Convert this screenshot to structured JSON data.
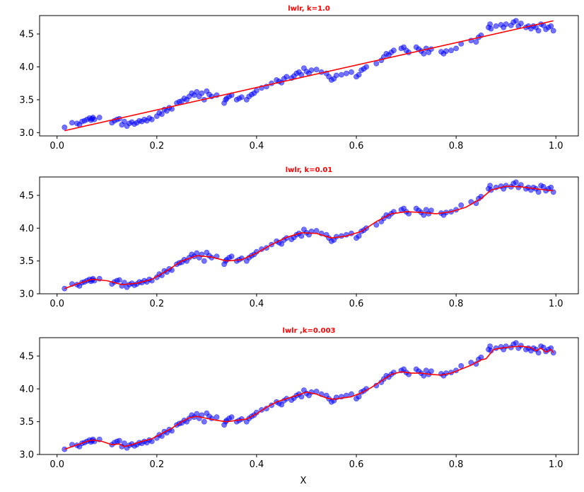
{
  "figure": {
    "xlabel": "X"
  },
  "chart_data": [
    {
      "type": "scatter",
      "title": "lwlr, k=1.0",
      "xlabel": "",
      "ylabel": "",
      "xlim": [
        -0.035,
        1.045
      ],
      "ylim": [
        2.95,
        4.78
      ],
      "xticks": [
        "0.0",
        "0.2",
        "0.4",
        "0.6",
        "0.8",
        "1.0"
      ],
      "yticks": [
        "3.0",
        "3.5",
        "4.0",
        "4.5"
      ],
      "grid": false,
      "colors": {
        "points": "#0000ff",
        "fit": "#ff0000",
        "title": "#ff0000"
      },
      "fit_line": {
        "x": [
          0.015,
          0.995
        ],
        "y": [
          3.03,
          4.7
        ]
      }
    },
    {
      "type": "scatter",
      "title": "lwlr, k=0.01",
      "xlabel": "",
      "ylabel": "",
      "xlim": [
        -0.035,
        1.045
      ],
      "ylim": [
        3.0,
        4.78
      ],
      "xticks": [
        "0.0",
        "0.2",
        "0.4",
        "0.6",
        "0.8",
        "1.0"
      ],
      "yticks": [
        "3.0",
        "3.5",
        "4.0",
        "4.5"
      ],
      "grid": false,
      "colors": {
        "points": "#0000ff",
        "fit": "#ff0000",
        "title": "#ff0000"
      },
      "fit_line": {
        "x": [
          0.015,
          0.04,
          0.07,
          0.1,
          0.13,
          0.16,
          0.19,
          0.22,
          0.25,
          0.28,
          0.31,
          0.34,
          0.37,
          0.4,
          0.43,
          0.46,
          0.49,
          0.52,
          0.55,
          0.58,
          0.61,
          0.64,
          0.67,
          0.7,
          0.73,
          0.76,
          0.79,
          0.82,
          0.85,
          0.87,
          0.9,
          0.93,
          0.96,
          0.995
        ],
        "y": [
          3.08,
          3.15,
          3.22,
          3.2,
          3.14,
          3.16,
          3.22,
          3.35,
          3.5,
          3.58,
          3.56,
          3.5,
          3.52,
          3.62,
          3.75,
          3.86,
          3.93,
          3.92,
          3.85,
          3.88,
          3.95,
          4.1,
          4.22,
          4.25,
          4.24,
          4.22,
          4.25,
          4.32,
          4.45,
          4.58,
          4.64,
          4.63,
          4.6,
          4.57
        ]
      }
    },
    {
      "type": "scatter",
      "title": "lwlr ,k=0.003",
      "xlabel": "X",
      "ylabel": "",
      "xlim": [
        -0.035,
        1.045
      ],
      "ylim": [
        3.0,
        4.78
      ],
      "xticks": [
        "0.0",
        "0.2",
        "0.4",
        "0.6",
        "0.8",
        "1.0"
      ],
      "yticks": [
        "3.0",
        "3.5",
        "4.0",
        "4.5"
      ],
      "grid": false,
      "colors": {
        "points": "#0000ff",
        "fit": "#ff0000",
        "title": "#ff0000"
      },
      "fit_line": {
        "x": [
          0.015,
          0.03,
          0.045,
          0.06,
          0.07,
          0.09,
          0.11,
          0.125,
          0.135,
          0.15,
          0.17,
          0.19,
          0.21,
          0.23,
          0.25,
          0.265,
          0.28,
          0.3,
          0.32,
          0.34,
          0.36,
          0.38,
          0.4,
          0.42,
          0.44,
          0.46,
          0.48,
          0.5,
          0.52,
          0.54,
          0.555,
          0.57,
          0.59,
          0.61,
          0.63,
          0.65,
          0.67,
          0.69,
          0.71,
          0.73,
          0.75,
          0.77,
          0.79,
          0.81,
          0.83,
          0.85,
          0.86,
          0.875,
          0.89,
          0.91,
          0.93,
          0.95,
          0.96,
          0.97,
          0.98,
          0.99,
          0.995
        ],
        "y": [
          3.08,
          3.12,
          3.16,
          3.2,
          3.22,
          3.2,
          3.15,
          3.16,
          3.12,
          3.15,
          3.2,
          3.24,
          3.32,
          3.4,
          3.5,
          3.56,
          3.58,
          3.55,
          3.52,
          3.5,
          3.52,
          3.54,
          3.62,
          3.72,
          3.8,
          3.85,
          3.9,
          3.95,
          3.92,
          3.86,
          3.84,
          3.86,
          3.88,
          3.94,
          4.02,
          4.12,
          4.22,
          4.26,
          4.24,
          4.24,
          4.22,
          4.21,
          4.24,
          4.3,
          4.36,
          4.44,
          4.46,
          4.6,
          4.62,
          4.64,
          4.65,
          4.63,
          4.58,
          4.62,
          4.56,
          4.6,
          4.55
        ]
      }
    }
  ],
  "scatter_points": {
    "x": [
      0.015,
      0.03,
      0.04,
      0.045,
      0.05,
      0.055,
      0.06,
      0.065,
      0.068,
      0.07,
      0.072,
      0.075,
      0.085,
      0.11,
      0.115,
      0.12,
      0.125,
      0.13,
      0.135,
      0.14,
      0.145,
      0.15,
      0.155,
      0.16,
      0.165,
      0.17,
      0.175,
      0.18,
      0.185,
      0.19,
      0.2,
      0.205,
      0.21,
      0.215,
      0.22,
      0.225,
      0.23,
      0.24,
      0.245,
      0.25,
      0.255,
      0.26,
      0.265,
      0.27,
      0.275,
      0.28,
      0.285,
      0.29,
      0.295,
      0.3,
      0.305,
      0.31,
      0.32,
      0.335,
      0.338,
      0.34,
      0.345,
      0.35,
      0.36,
      0.365,
      0.37,
      0.38,
      0.385,
      0.39,
      0.395,
      0.4,
      0.41,
      0.42,
      0.43,
      0.44,
      0.445,
      0.45,
      0.455,
      0.46,
      0.47,
      0.475,
      0.48,
      0.485,
      0.49,
      0.495,
      0.5,
      0.505,
      0.51,
      0.52,
      0.53,
      0.54,
      0.545,
      0.55,
      0.555,
      0.56,
      0.57,
      0.58,
      0.59,
      0.6,
      0.605,
      0.61,
      0.615,
      0.62,
      0.64,
      0.65,
      0.655,
      0.66,
      0.665,
      0.67,
      0.675,
      0.69,
      0.695,
      0.7,
      0.705,
      0.72,
      0.725,
      0.73,
      0.735,
      0.74,
      0.745,
      0.75,
      0.77,
      0.775,
      0.78,
      0.79,
      0.8,
      0.81,
      0.83,
      0.84,
      0.845,
      0.85,
      0.865,
      0.868,
      0.87,
      0.88,
      0.89,
      0.895,
      0.9,
      0.91,
      0.915,
      0.92,
      0.925,
      0.93,
      0.94,
      0.945,
      0.95,
      0.955,
      0.96,
      0.965,
      0.97,
      0.975,
      0.98,
      0.985,
      0.99,
      0.995
    ],
    "y": [
      3.08,
      3.15,
      3.14,
      3.12,
      3.17,
      3.18,
      3.2,
      3.22,
      3.19,
      3.21,
      3.23,
      3.2,
      3.23,
      3.15,
      3.18,
      3.2,
      3.21,
      3.12,
      3.17,
      3.1,
      3.14,
      3.16,
      3.13,
      3.15,
      3.18,
      3.17,
      3.2,
      3.18,
      3.22,
      3.2,
      3.25,
      3.3,
      3.28,
      3.35,
      3.33,
      3.38,
      3.36,
      3.45,
      3.47,
      3.48,
      3.52,
      3.5,
      3.55,
      3.6,
      3.57,
      3.62,
      3.55,
      3.6,
      3.5,
      3.63,
      3.58,
      3.55,
      3.57,
      3.45,
      3.5,
      3.52,
      3.55,
      3.57,
      3.5,
      3.52,
      3.54,
      3.5,
      3.55,
      3.58,
      3.6,
      3.64,
      3.68,
      3.7,
      3.75,
      3.8,
      3.78,
      3.76,
      3.82,
      3.85,
      3.83,
      3.86,
      3.9,
      3.92,
      3.88,
      3.98,
      3.93,
      3.9,
      3.95,
      3.96,
      3.92,
      3.9,
      3.85,
      3.8,
      3.82,
      3.87,
      3.88,
      3.9,
      3.92,
      3.85,
      3.88,
      3.95,
      3.97,
      4.0,
      4.05,
      4.1,
      4.15,
      4.2,
      4.18,
      4.22,
      4.25,
      4.28,
      4.3,
      4.25,
      4.22,
      4.3,
      4.27,
      4.24,
      4.2,
      4.28,
      4.22,
      4.27,
      4.23,
      4.2,
      4.24,
      4.25,
      4.28,
      4.35,
      4.4,
      4.38,
      4.45,
      4.48,
      4.6,
      4.65,
      4.58,
      4.62,
      4.64,
      4.6,
      4.65,
      4.63,
      4.68,
      4.7,
      4.62,
      4.66,
      4.6,
      4.62,
      4.58,
      4.62,
      4.6,
      4.55,
      4.65,
      4.63,
      4.57,
      4.6,
      4.62,
      4.55
    ]
  }
}
